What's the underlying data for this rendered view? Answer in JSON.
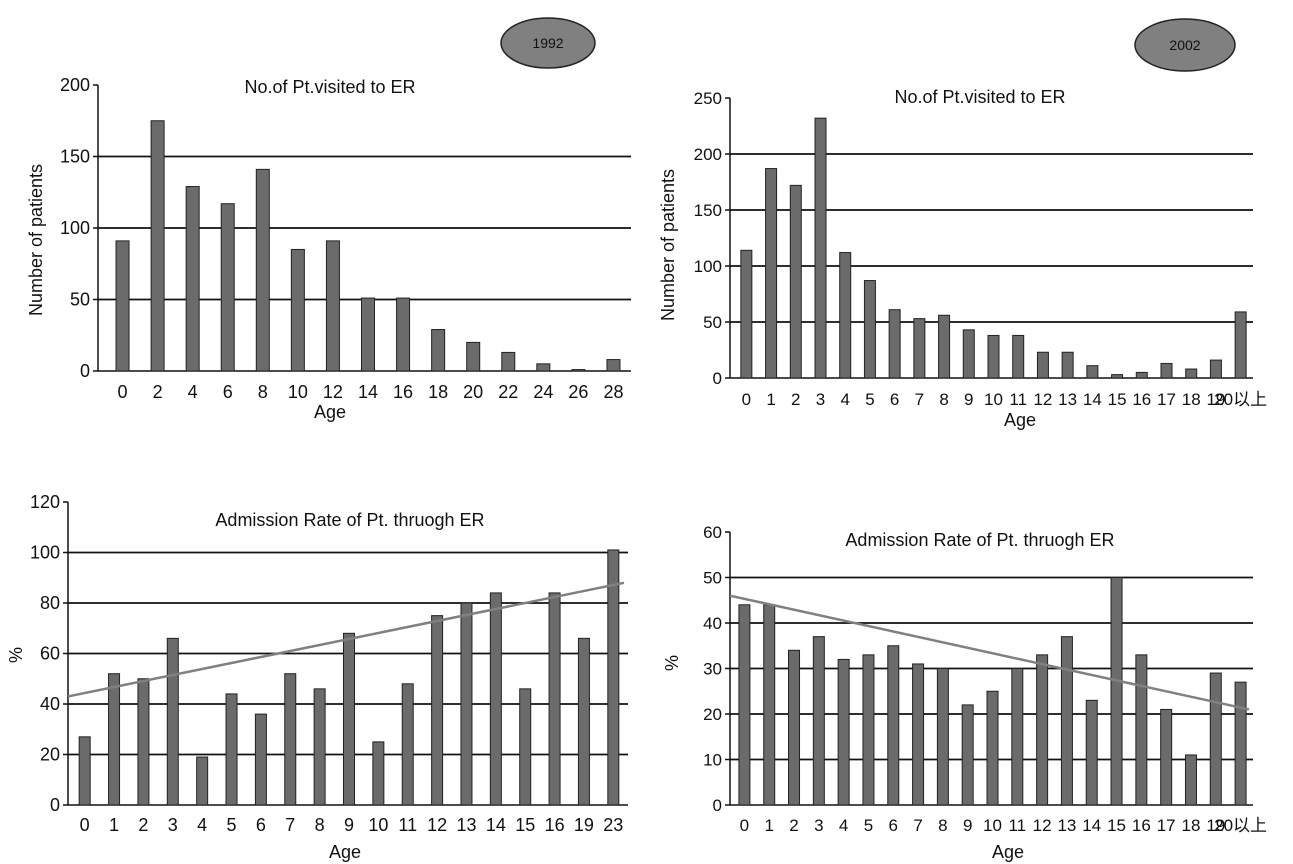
{
  "badges": {
    "left": "1992",
    "right": "2002"
  },
  "chart_data": [
    {
      "type": "bar",
      "title": "No.of Pt.visited to ER",
      "xlabel": "Age",
      "ylabel": "Number of patients",
      "ylim": [
        0,
        200
      ],
      "yticks": [
        "0",
        "50",
        "100",
        "150",
        "200"
      ],
      "x_tick_labels": [
        "0",
        "2",
        "4",
        "6",
        "8",
        "10",
        "12",
        "14",
        "16",
        "18",
        "20",
        "22",
        "24",
        "26",
        "28"
      ],
      "values": [
        91,
        175,
        129,
        117,
        141,
        85,
        91,
        51,
        51,
        29,
        20,
        13,
        5,
        1,
        8
      ],
      "grid": "horizontal",
      "bar_color": "#6b6b6b"
    },
    {
      "type": "bar",
      "title": "No.of Pt.visited to ER",
      "xlabel": "Age",
      "ylabel": "Number of patients",
      "ylim": [
        0,
        250
      ],
      "yticks": [
        "0",
        "50",
        "100",
        "150",
        "200",
        "250"
      ],
      "x_tick_labels": [
        "0",
        "1",
        "2",
        "3",
        "4",
        "5",
        "6",
        "7",
        "8",
        "9",
        "10",
        "11",
        "12",
        "13",
        "14",
        "15",
        "16",
        "17",
        "18",
        "19",
        "20以上"
      ],
      "values": [
        114,
        187,
        172,
        232,
        112,
        87,
        61,
        53,
        56,
        43,
        38,
        38,
        23,
        23,
        11,
        3,
        5,
        13,
        8,
        16,
        59
      ],
      "grid": "horizontal",
      "bar_color": "#6b6b6b"
    },
    {
      "type": "bar",
      "title": "Admission Rate of Pt. thruogh ER",
      "xlabel": "Age",
      "ylabel": "%",
      "ylim": [
        0,
        120
      ],
      "yticks": [
        "0",
        "20",
        "40",
        "60",
        "80",
        "100",
        "120"
      ],
      "x_tick_labels": [
        "0",
        "1",
        "2",
        "3",
        "4",
        "5",
        "6",
        "7",
        "8",
        "9",
        "10",
        "11",
        "12",
        "13",
        "14",
        "15",
        "16",
        "19",
        "23"
      ],
      "values": [
        27,
        52,
        50,
        66,
        19,
        44,
        36,
        52,
        46,
        68,
        25,
        48,
        75,
        80,
        84,
        46,
        84,
        66,
        101
      ],
      "trendline": {
        "start": 43,
        "end": 88
      },
      "grid": "horizontal",
      "bar_color": "#6b6b6b"
    },
    {
      "type": "bar",
      "title": "Admission Rate of Pt. thruogh ER",
      "xlabel": "Age",
      "ylabel": "%",
      "ylim": [
        0,
        60
      ],
      "yticks": [
        "0",
        "10",
        "20",
        "30",
        "40",
        "50",
        "60"
      ],
      "x_tick_labels": [
        "0",
        "1",
        "2",
        "3",
        "4",
        "5",
        "6",
        "7",
        "8",
        "9",
        "10",
        "11",
        "12",
        "13",
        "14",
        "15",
        "16",
        "17",
        "18",
        "19",
        "20以上"
      ],
      "values": [
        44,
        44,
        34,
        37,
        32,
        33,
        35,
        31,
        30,
        22,
        25,
        30,
        33,
        37,
        23,
        50,
        33,
        21,
        11,
        29,
        27
      ],
      "trendline": {
        "start": 46,
        "end": 21
      },
      "grid": "horizontal",
      "bar_color": "#6b6b6b"
    }
  ]
}
